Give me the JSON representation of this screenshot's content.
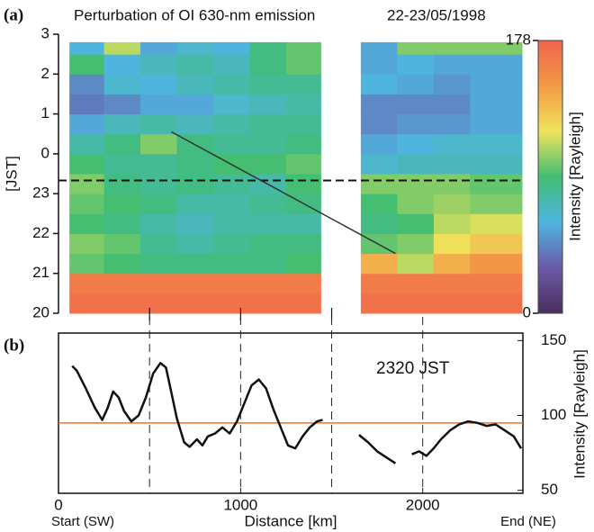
{
  "chart_data": [
    {
      "type": "heatmap",
      "panel_label": "(a)",
      "title": "Perturbation of OI 630-nm emission",
      "subtitle": "22-23/05/1998",
      "y_label": "[JST]",
      "x_edges": [
        60,
        250,
        450,
        650,
        850,
        1050,
        1250,
        1440,
        1660,
        1860,
        2060,
        2260,
        2545
      ],
      "y_edges": [
        20,
        20.5,
        21,
        21.5,
        22,
        22.5,
        23,
        23.5,
        24,
        24.5,
        25,
        25.5,
        26,
        26.5,
        26.8
      ],
      "z": [
        [
          170,
          170,
          170,
          170,
          170,
          170,
          170,
          null,
          170,
          170,
          170,
          170
        ],
        [
          165,
          165,
          165,
          165,
          165,
          165,
          165,
          null,
          165,
          165,
          165,
          165
        ],
        [
          95,
          90,
          85,
          85,
          85,
          85,
          90,
          null,
          140,
          110,
          140,
          150
        ],
        [
          100,
          95,
          80,
          75,
          80,
          85,
          85,
          null,
          95,
          100,
          120,
          130
        ],
        [
          90,
          85,
          75,
          70,
          75,
          75,
          75,
          null,
          85,
          90,
          110,
          115
        ],
        [
          95,
          90,
          85,
          75,
          75,
          80,
          85,
          null,
          90,
          100,
          105,
          100
        ],
        [
          100,
          85,
          80,
          85,
          80,
          75,
          90,
          null,
          100,
          100,
          100,
          95
        ],
        [
          90,
          80,
          80,
          85,
          90,
          90,
          95,
          null,
          65,
          70,
          70,
          70
        ],
        [
          75,
          85,
          100,
          85,
          80,
          80,
          85,
          null,
          55,
          60,
          65,
          65
        ],
        [
          55,
          70,
          75,
          70,
          75,
          80,
          80,
          null,
          45,
          50,
          50,
          55
        ],
        [
          40,
          45,
          55,
          55,
          65,
          70,
          75,
          null,
          45,
          45,
          45,
          55
        ],
        [
          45,
          65,
          60,
          70,
          75,
          80,
          80,
          null,
          60,
          55,
          50,
          55
        ],
        [
          90,
          60,
          70,
          75,
          70,
          85,
          95,
          null,
          55,
          60,
          55,
          55
        ],
        [
          60,
          110,
          55,
          65,
          60,
          85,
          95,
          null,
          55,
          100,
          100,
          100
        ]
      ],
      "xlim": [
        0,
        2550
      ],
      "ylim": [
        20,
        27
      ],
      "yticks": [
        20,
        21,
        22,
        23,
        {
          "value": 24,
          "label": "0"
        },
        {
          "value": 25,
          "label": "1"
        },
        {
          "value": 26,
          "label": "2"
        },
        {
          "value": 27,
          "label": "3"
        }
      ],
      "colorbar": {
        "label": "Intensity [Rayleigh]",
        "lim": [
          0,
          178
        ],
        "ticks": [
          0,
          178
        ]
      },
      "colorscale": [
        "#4a2e5e",
        "#6b5aa6",
        "#4fb5e2",
        "#40bd72",
        "#eee35a",
        "#f39a45",
        "#f0634c"
      ],
      "hline": 23.33,
      "segment": {
        "x": [
          620,
          1850
        ],
        "y": [
          24.55,
          21.5
        ]
      },
      "vlines": [
        500,
        1000,
        1500
      ]
    },
    {
      "type": "line",
      "panel_label": "(b)",
      "annotation": "2320 JST",
      "x_label": "Distance [km]",
      "start_label": "Start (SW)",
      "end_label": "End (NE)",
      "x": [
        75,
        100,
        150,
        200,
        240,
        270,
        300,
        330,
        360,
        400,
        440,
        480,
        520,
        560,
        590,
        620,
        650,
        690,
        720,
        760,
        790,
        820,
        860,
        900,
        940,
        980,
        1020,
        1060,
        1100,
        1140,
        1180,
        1220,
        1260,
        1300,
        1340,
        1380,
        1420,
        1450,
        1550,
        1650,
        1700,
        1750,
        1800,
        1850,
        1895,
        1940,
        1980,
        2020,
        2060,
        2100,
        2150,
        2200,
        2250,
        2300,
        2350,
        2400,
        2450,
        2500,
        2540
      ],
      "series": [
        {
          "color": "#111111",
          "axis": "y2",
          "values": [
            133,
            130,
            118,
            105,
            97,
            105,
            116,
            112,
            103,
            96,
            100,
            112,
            128,
            135,
            132,
            115,
            98,
            82,
            79,
            84,
            80,
            86,
            88,
            92,
            88,
            96,
            108,
            120,
            124,
            118,
            104,
            92,
            80,
            78,
            86,
            92,
            96,
            97,
            null,
            87,
            82,
            76,
            72,
            68,
            null,
            74,
            76,
            73,
            78,
            84,
            90,
            94,
            96,
            95,
            93,
            94,
            90,
            86,
            78
          ]
        }
      ],
      "xlim": [
        0,
        2550
      ],
      "xticks": [
        0,
        1000,
        2000
      ],
      "y2lim": [
        48,
        155
      ],
      "y2ticks": [
        50,
        100,
        150
      ],
      "y2_label": "Intensity [Rayleigh]",
      "hline": 95,
      "hline_color": "#f07020",
      "vlines": [
        500,
        1000,
        1500,
        2000
      ]
    }
  ]
}
